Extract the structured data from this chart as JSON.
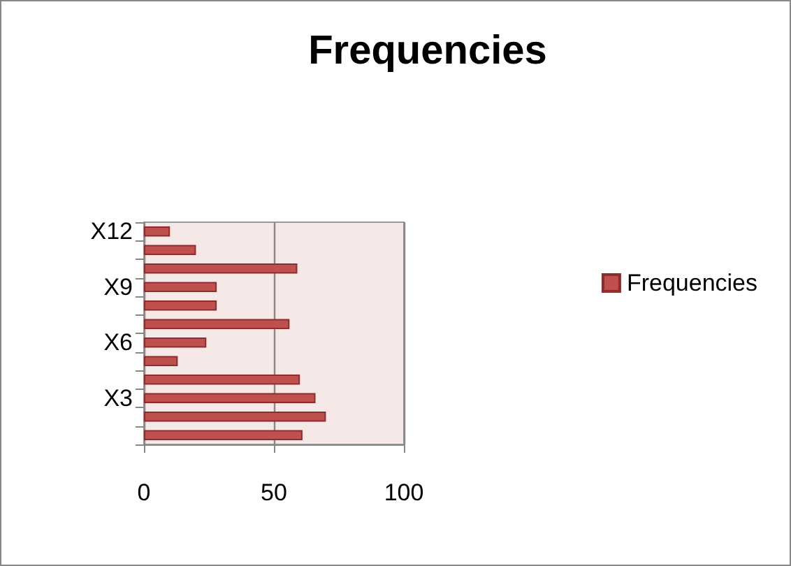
{
  "chart_data": {
    "type": "bar",
    "orientation": "horizontal",
    "title": "Frequencies",
    "categories": [
      "X12",
      null,
      null,
      "X9",
      null,
      null,
      "X6",
      null,
      null,
      "X3",
      null,
      null
    ],
    "series": [
      {
        "name": "Frequencies",
        "color": "#c0504d",
        "values": [
          10,
          20,
          59,
          28,
          28,
          56,
          24,
          13,
          60,
          66,
          70,
          61
        ]
      }
    ],
    "xlim": [
      0,
      100
    ],
    "xticks": [
      0,
      50,
      100
    ],
    "grid": "x",
    "legend": "right"
  }
}
